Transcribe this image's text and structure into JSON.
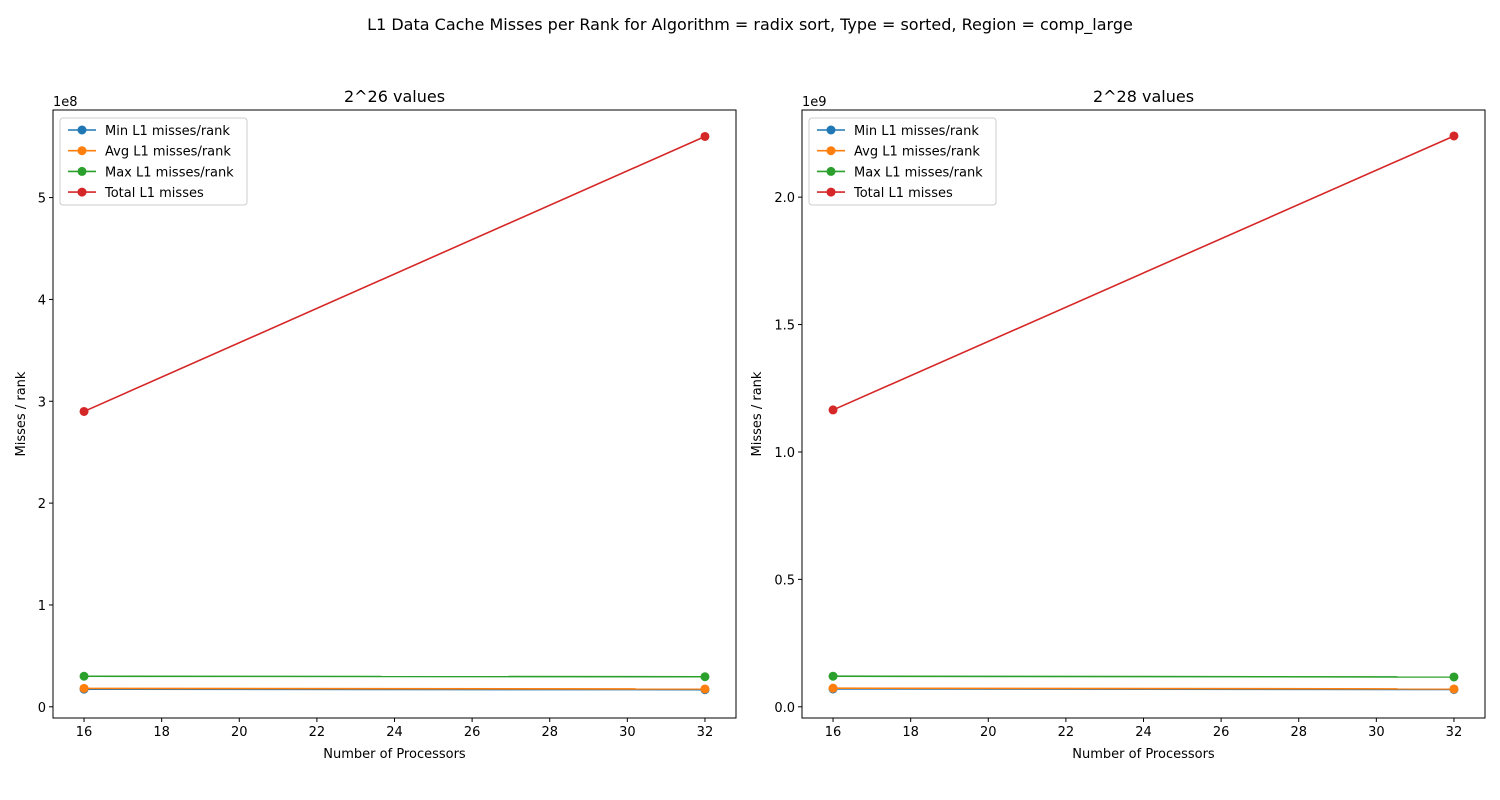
{
  "figure": {
    "suptitle": "L1 Data Cache Misses per Rank for Algorithm = radix sort, Type = sorted, Region = comp_large"
  },
  "series_colors": {
    "Min L1 misses/rank": "#1f77b4",
    "Avg L1 misses/rank": "#ff7f0e",
    "Max L1 misses/rank": "#2ca02c",
    "Total L1 misses": "#d62728"
  },
  "chart_data": [
    {
      "type": "line",
      "title": "2^26 values",
      "xlabel": "Number of Processors",
      "ylabel": "Misses / rank",
      "offset_text": "1e8",
      "scale": 100000000,
      "xlim": [
        15.2,
        32.8
      ],
      "ylim": [
        -11000000,
        586000000
      ],
      "xticks": [
        16,
        18,
        20,
        22,
        24,
        26,
        28,
        30,
        32
      ],
      "yticks": [
        0,
        100000000,
        200000000,
        300000000,
        400000000,
        500000000
      ],
      "ytick_labels": [
        "0",
        "1",
        "2",
        "3",
        "4",
        "5"
      ],
      "legend_loc": "upper left",
      "grid": false,
      "x": [
        16,
        32
      ],
      "series": [
        {
          "name": "Min L1 misses/rank",
          "values": [
            17300000,
            16800000
          ]
        },
        {
          "name": "Avg L1 misses/rank",
          "values": [
            18100000,
            17500000
          ]
        },
        {
          "name": "Max L1 misses/rank",
          "values": [
            30000000,
            29500000
          ]
        },
        {
          "name": "Total L1 misses",
          "values": [
            290000000,
            560000000
          ]
        }
      ]
    },
    {
      "type": "line",
      "title": "2^28 values",
      "xlabel": "Number of Processors",
      "ylabel": "Misses / rank",
      "offset_text": "1e9",
      "scale": 1000000000,
      "xlim": [
        15.2,
        32.8
      ],
      "ylim": [
        -44000000,
        2342000000
      ],
      "xticks": [
        16,
        18,
        20,
        22,
        24,
        26,
        28,
        30,
        32
      ],
      "yticks": [
        0,
        500000000,
        1000000000,
        1500000000,
        2000000000
      ],
      "ytick_labels": [
        "0.0",
        "0.5",
        "1.0",
        "1.5",
        "2.0"
      ],
      "legend_loc": "upper left",
      "grid": false,
      "x": [
        16,
        32
      ],
      "series": [
        {
          "name": "Min L1 misses/rank",
          "values": [
            70000000,
            68000000
          ]
        },
        {
          "name": "Avg L1 misses/rank",
          "values": [
            73000000,
            70000000
          ]
        },
        {
          "name": "Max L1 misses/rank",
          "values": [
            120000000,
            117000000
          ]
        },
        {
          "name": "Total L1 misses",
          "values": [
            1165000000,
            2240000000
          ]
        }
      ]
    }
  ]
}
